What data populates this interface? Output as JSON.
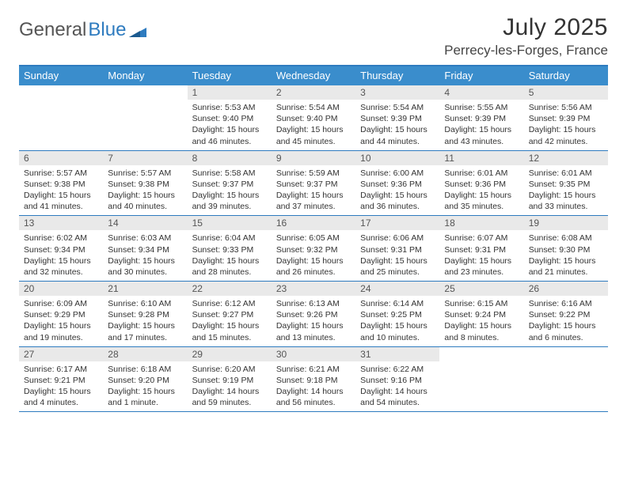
{
  "brand": {
    "part1": "General",
    "part2": "Blue"
  },
  "title": "July 2025",
  "location": "Perrecy-les-Forges, France",
  "colors": {
    "header_bg": "#3a8dcc",
    "border": "#2e7bbf",
    "daynum_bg": "#e9e9e9",
    "text": "#333333",
    "body_bg": "#ffffff"
  },
  "layout": {
    "columns": 7,
    "rows": 5,
    "aspect_w": 792,
    "aspect_h": 612
  },
  "day_labels": [
    "Sunday",
    "Monday",
    "Tuesday",
    "Wednesday",
    "Thursday",
    "Friday",
    "Saturday"
  ],
  "weeks": [
    [
      {
        "n": "",
        "sr": "",
        "ss": "",
        "dl": ""
      },
      {
        "n": "",
        "sr": "",
        "ss": "",
        "dl": ""
      },
      {
        "n": "1",
        "sr": "Sunrise: 5:53 AM",
        "ss": "Sunset: 9:40 PM",
        "dl": "Daylight: 15 hours and 46 minutes."
      },
      {
        "n": "2",
        "sr": "Sunrise: 5:54 AM",
        "ss": "Sunset: 9:40 PM",
        "dl": "Daylight: 15 hours and 45 minutes."
      },
      {
        "n": "3",
        "sr": "Sunrise: 5:54 AM",
        "ss": "Sunset: 9:39 PM",
        "dl": "Daylight: 15 hours and 44 minutes."
      },
      {
        "n": "4",
        "sr": "Sunrise: 5:55 AM",
        "ss": "Sunset: 9:39 PM",
        "dl": "Daylight: 15 hours and 43 minutes."
      },
      {
        "n": "5",
        "sr": "Sunrise: 5:56 AM",
        "ss": "Sunset: 9:39 PM",
        "dl": "Daylight: 15 hours and 42 minutes."
      }
    ],
    [
      {
        "n": "6",
        "sr": "Sunrise: 5:57 AM",
        "ss": "Sunset: 9:38 PM",
        "dl": "Daylight: 15 hours and 41 minutes."
      },
      {
        "n": "7",
        "sr": "Sunrise: 5:57 AM",
        "ss": "Sunset: 9:38 PM",
        "dl": "Daylight: 15 hours and 40 minutes."
      },
      {
        "n": "8",
        "sr": "Sunrise: 5:58 AM",
        "ss": "Sunset: 9:37 PM",
        "dl": "Daylight: 15 hours and 39 minutes."
      },
      {
        "n": "9",
        "sr": "Sunrise: 5:59 AM",
        "ss": "Sunset: 9:37 PM",
        "dl": "Daylight: 15 hours and 37 minutes."
      },
      {
        "n": "10",
        "sr": "Sunrise: 6:00 AM",
        "ss": "Sunset: 9:36 PM",
        "dl": "Daylight: 15 hours and 36 minutes."
      },
      {
        "n": "11",
        "sr": "Sunrise: 6:01 AM",
        "ss": "Sunset: 9:36 PM",
        "dl": "Daylight: 15 hours and 35 minutes."
      },
      {
        "n": "12",
        "sr": "Sunrise: 6:01 AM",
        "ss": "Sunset: 9:35 PM",
        "dl": "Daylight: 15 hours and 33 minutes."
      }
    ],
    [
      {
        "n": "13",
        "sr": "Sunrise: 6:02 AM",
        "ss": "Sunset: 9:34 PM",
        "dl": "Daylight: 15 hours and 32 minutes."
      },
      {
        "n": "14",
        "sr": "Sunrise: 6:03 AM",
        "ss": "Sunset: 9:34 PM",
        "dl": "Daylight: 15 hours and 30 minutes."
      },
      {
        "n": "15",
        "sr": "Sunrise: 6:04 AM",
        "ss": "Sunset: 9:33 PM",
        "dl": "Daylight: 15 hours and 28 minutes."
      },
      {
        "n": "16",
        "sr": "Sunrise: 6:05 AM",
        "ss": "Sunset: 9:32 PM",
        "dl": "Daylight: 15 hours and 26 minutes."
      },
      {
        "n": "17",
        "sr": "Sunrise: 6:06 AM",
        "ss": "Sunset: 9:31 PM",
        "dl": "Daylight: 15 hours and 25 minutes."
      },
      {
        "n": "18",
        "sr": "Sunrise: 6:07 AM",
        "ss": "Sunset: 9:31 PM",
        "dl": "Daylight: 15 hours and 23 minutes."
      },
      {
        "n": "19",
        "sr": "Sunrise: 6:08 AM",
        "ss": "Sunset: 9:30 PM",
        "dl": "Daylight: 15 hours and 21 minutes."
      }
    ],
    [
      {
        "n": "20",
        "sr": "Sunrise: 6:09 AM",
        "ss": "Sunset: 9:29 PM",
        "dl": "Daylight: 15 hours and 19 minutes."
      },
      {
        "n": "21",
        "sr": "Sunrise: 6:10 AM",
        "ss": "Sunset: 9:28 PM",
        "dl": "Daylight: 15 hours and 17 minutes."
      },
      {
        "n": "22",
        "sr": "Sunrise: 6:12 AM",
        "ss": "Sunset: 9:27 PM",
        "dl": "Daylight: 15 hours and 15 minutes."
      },
      {
        "n": "23",
        "sr": "Sunrise: 6:13 AM",
        "ss": "Sunset: 9:26 PM",
        "dl": "Daylight: 15 hours and 13 minutes."
      },
      {
        "n": "24",
        "sr": "Sunrise: 6:14 AM",
        "ss": "Sunset: 9:25 PM",
        "dl": "Daylight: 15 hours and 10 minutes."
      },
      {
        "n": "25",
        "sr": "Sunrise: 6:15 AM",
        "ss": "Sunset: 9:24 PM",
        "dl": "Daylight: 15 hours and 8 minutes."
      },
      {
        "n": "26",
        "sr": "Sunrise: 6:16 AM",
        "ss": "Sunset: 9:22 PM",
        "dl": "Daylight: 15 hours and 6 minutes."
      }
    ],
    [
      {
        "n": "27",
        "sr": "Sunrise: 6:17 AM",
        "ss": "Sunset: 9:21 PM",
        "dl": "Daylight: 15 hours and 4 minutes."
      },
      {
        "n": "28",
        "sr": "Sunrise: 6:18 AM",
        "ss": "Sunset: 9:20 PM",
        "dl": "Daylight: 15 hours and 1 minute."
      },
      {
        "n": "29",
        "sr": "Sunrise: 6:20 AM",
        "ss": "Sunset: 9:19 PM",
        "dl": "Daylight: 14 hours and 59 minutes."
      },
      {
        "n": "30",
        "sr": "Sunrise: 6:21 AM",
        "ss": "Sunset: 9:18 PM",
        "dl": "Daylight: 14 hours and 56 minutes."
      },
      {
        "n": "31",
        "sr": "Sunrise: 6:22 AM",
        "ss": "Sunset: 9:16 PM",
        "dl": "Daylight: 14 hours and 54 minutes."
      },
      {
        "n": "",
        "sr": "",
        "ss": "",
        "dl": ""
      },
      {
        "n": "",
        "sr": "",
        "ss": "",
        "dl": ""
      }
    ]
  ]
}
